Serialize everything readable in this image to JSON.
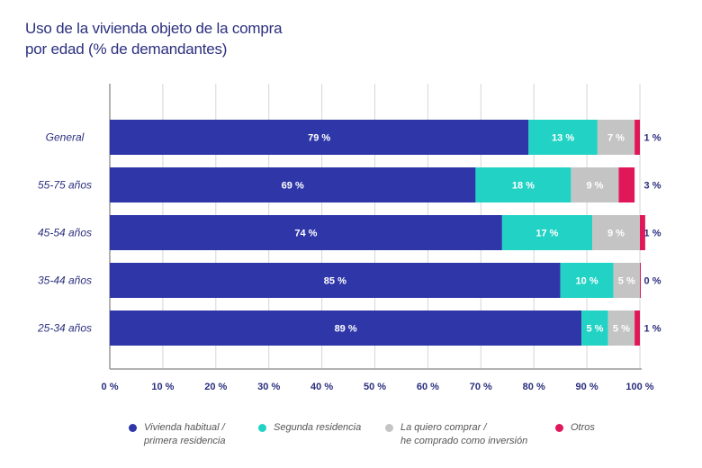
{
  "chart_data": {
    "type": "bar",
    "orientation": "horizontal",
    "stacked": true,
    "title": "Uso de la vivienda objeto de la compra por edad (% de demandantes)",
    "title_lines": [
      "Uso de la vivienda objeto de la compra",
      "por edad (% de demandantes)"
    ],
    "categories": [
      "General",
      "55-75 años",
      "45-54 años",
      "35-44 años",
      "25-34 años"
    ],
    "series": [
      {
        "name": "Vivienda habitual / primera residencia",
        "legend_lines": [
          "Vivienda habitual /",
          "primera residencia"
        ],
        "color": "#2e36a8",
        "values": [
          79,
          69,
          74,
          85,
          89
        ]
      },
      {
        "name": "Segunda residencia",
        "legend_lines": [
          "Segunda residencia"
        ],
        "color": "#22d3c5",
        "values": [
          13,
          18,
          17,
          10,
          5
        ]
      },
      {
        "name": "La quiero comprar / he comprado como inversión",
        "legend_lines": [
          "La quiero comprar /",
          "he comprado como inversión"
        ],
        "color": "#c4c4c4",
        "values": [
          7,
          9,
          9,
          5,
          5
        ]
      },
      {
        "name": "Otros",
        "legend_lines": [
          "Otros"
        ],
        "color": "#e0185a",
        "values": [
          1,
          3,
          1,
          0,
          1
        ]
      }
    ],
    "xlim": [
      0,
      100
    ],
    "xticks": [
      0,
      10,
      20,
      30,
      40,
      50,
      60,
      70,
      80,
      90,
      100
    ],
    "xtick_labels": [
      "0 %",
      "10 %",
      "20 %",
      "30 %",
      "40 %",
      "50 %",
      "60 %",
      "70 %",
      "80 %",
      "90 %",
      "100 %"
    ],
    "value_suffix": " %",
    "grid": true,
    "legend_position": "bottom",
    "xlabel": "",
    "ylabel": ""
  }
}
